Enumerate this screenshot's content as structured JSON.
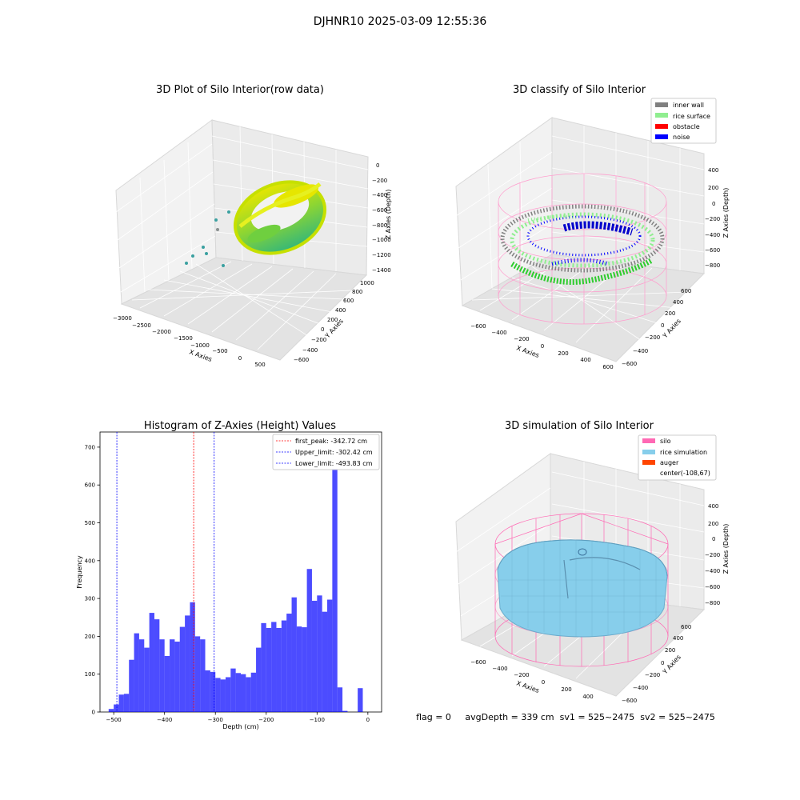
{
  "suptitle": "DJHNR10 2025-03-09 12:55:36",
  "status_line": "flag = 0     avgDepth = 339 cm  sv1 = 525~2475  sv2 = 525~2475",
  "panels": {
    "raw": {
      "title": "3D Plot of Silo Interior(row data)",
      "xlabel": "X Axies",
      "ylabel": "Y Axies",
      "zlabel": "Z Axies (Depth)",
      "xticks": [
        "−3000",
        "−2500",
        "−2000",
        "−1500",
        "−1000",
        "−500",
        "0",
        "500"
      ],
      "yticks": [
        "−600",
        "−400",
        "−200",
        "0",
        "200",
        "400",
        "600",
        "800",
        "1000"
      ],
      "zticks": [
        "0",
        "−200",
        "−400",
        "−600",
        "−800",
        "−1000",
        "−1200",
        "−1400"
      ]
    },
    "classify": {
      "title": "3D classify of Silo Interior",
      "xlabel": "X Axies",
      "ylabel": "Y Axies",
      "zlabel": "Z Axies (Depth)",
      "xticks": [
        "−600",
        "−400",
        "−200",
        "0",
        "200",
        "400",
        "600"
      ],
      "yticks": [
        "−600",
        "−400",
        "−200",
        "0",
        "200",
        "400",
        "600"
      ],
      "zticks": [
        "400",
        "200",
        "0",
        "−200",
        "−400",
        "−600",
        "−800"
      ],
      "legend": [
        {
          "label": "inner wall",
          "color": "#808080"
        },
        {
          "label": "rice surface",
          "color": "#90ee90"
        },
        {
          "label": "obstacle",
          "color": "#ff0000"
        },
        {
          "label": "noise",
          "color": "#0000ff"
        }
      ]
    },
    "simulation": {
      "title": "3D simulation of Silo Interior",
      "xlabel": "X Axies",
      "ylabel": "Y Axies",
      "zlabel": "Z Axies (Depth)",
      "xticks": [
        "−600",
        "−400",
        "−200",
        "0",
        "200",
        "400"
      ],
      "yticks": [
        "−600",
        "−400",
        "−200",
        "0",
        "200",
        "400",
        "600"
      ],
      "zticks": [
        "400",
        "200",
        "0",
        "−200",
        "−400",
        "−600",
        "−800"
      ],
      "legend": [
        {
          "label": "silo",
          "color": "#ff69b4"
        },
        {
          "label": "rice simulation",
          "color": "#87ceeb"
        },
        {
          "label": "auger",
          "color": "#ff4500"
        },
        {
          "label": "center(-108,67)",
          "color": ""
        }
      ]
    }
  },
  "chart_data": {
    "type": "bar",
    "title": "Histogram of Z-Axies (Height) Values",
    "xlabel": "Depth (cm)",
    "ylabel": "Frequency",
    "xlim": [
      -527,
      27
    ],
    "ylim": [
      0,
      740
    ],
    "xticks": [
      -500,
      -400,
      -300,
      -200,
      -100,
      0
    ],
    "yticks": [
      0,
      100,
      200,
      300,
      400,
      500,
      600,
      700
    ],
    "bar_color": "#0000ff",
    "bin_width": 10,
    "bin_starts": [
      -510,
      -500,
      -490,
      -480,
      -470,
      -460,
      -450,
      -440,
      -430,
      -420,
      -410,
      -400,
      -390,
      -380,
      -370,
      -360,
      -350,
      -340,
      -330,
      -320,
      -310,
      -300,
      -290,
      -280,
      -270,
      -260,
      -250,
      -240,
      -230,
      -220,
      -210,
      -200,
      -190,
      -180,
      -170,
      -160,
      -150,
      -140,
      -130,
      -120,
      -110,
      -100,
      -90,
      -80,
      -70,
      -60,
      -50,
      -40,
      -30,
      -20,
      -10,
      0
    ],
    "values": [
      8,
      20,
      46,
      48,
      138,
      208,
      192,
      170,
      262,
      245,
      192,
      148,
      192,
      186,
      225,
      255,
      290,
      200,
      192,
      110,
      106,
      90,
      86,
      92,
      115,
      103,
      100,
      92,
      104,
      170,
      235,
      222,
      238,
      222,
      242,
      260,
      303,
      226,
      224,
      378,
      294,
      308,
      265,
      297,
      700,
      65,
      3,
      0,
      0,
      63,
      0,
      0
    ],
    "lines": [
      {
        "label": "first_peak: -342.72 cm",
        "x": -342.72,
        "color": "#ff0000"
      },
      {
        "label": "Upper_limit: -302.42 cm",
        "x": -302.42,
        "color": "#0000ff"
      },
      {
        "label": "Lower_limit: -493.83 cm",
        "x": -493.83,
        "color": "#0000ff"
      }
    ],
    "legend_position": "top-right"
  }
}
